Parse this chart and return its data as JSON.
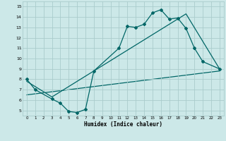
{
  "xlabel": "Humidex (Indice chaleur)",
  "bg_color": "#cce8e8",
  "grid_color": "#aacccc",
  "line_color": "#006666",
  "xlim": [
    -0.5,
    23.5
  ],
  "ylim": [
    4.5,
    15.5
  ],
  "xticks": [
    0,
    1,
    2,
    3,
    4,
    5,
    6,
    7,
    8,
    9,
    10,
    11,
    12,
    13,
    14,
    15,
    16,
    17,
    18,
    19,
    20,
    21,
    22,
    23
  ],
  "yticks": [
    5,
    6,
    7,
    8,
    9,
    10,
    11,
    12,
    13,
    14,
    15
  ],
  "line1_x": [
    0,
    1,
    3,
    4,
    5,
    6,
    7,
    8,
    11,
    12,
    13,
    14,
    15,
    16,
    17,
    18,
    19,
    20,
    21,
    23
  ],
  "line1_y": [
    8,
    7,
    6.1,
    5.7,
    4.9,
    4.8,
    5.1,
    8.8,
    11.0,
    13.1,
    13.0,
    13.3,
    14.4,
    14.7,
    13.8,
    13.9,
    12.9,
    11.0,
    9.7,
    9.0
  ],
  "line2_x": [
    0,
    3,
    19,
    23
  ],
  "line2_y": [
    7.8,
    6.3,
    14.3,
    9.0
  ],
  "line3_x": [
    0,
    23
  ],
  "line3_y": [
    6.5,
    8.8
  ]
}
